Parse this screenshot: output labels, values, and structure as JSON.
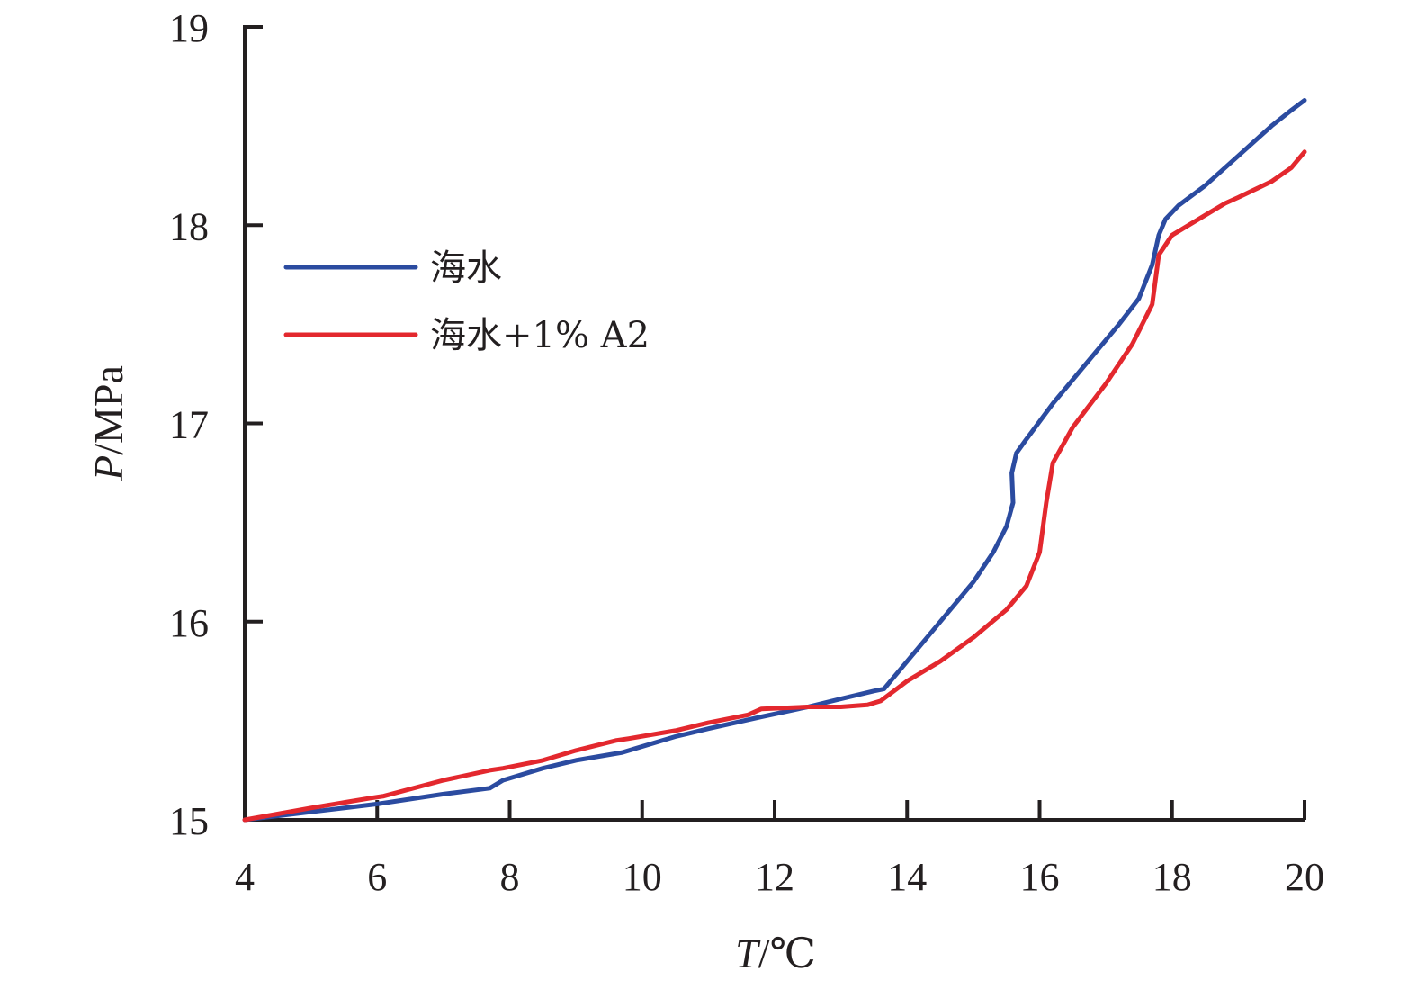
{
  "chart_data": {
    "type": "line",
    "xlabel_var": "T",
    "xlabel_unit": "/℃",
    "ylabel_var": "P",
    "ylabel_unit": "/MPa",
    "xlim": [
      4,
      20
    ],
    "ylim": [
      15,
      19
    ],
    "xticks": [
      4,
      6,
      8,
      10,
      12,
      14,
      16,
      18,
      20
    ],
    "yticks": [
      15,
      16,
      17,
      18,
      19
    ],
    "grid": false,
    "legend_position": "upper-left",
    "series": [
      {
        "name": "海水",
        "color": "#2b4ba0",
        "x": [
          4.0,
          5.0,
          6.0,
          7.0,
          7.7,
          7.9,
          8.5,
          9.0,
          9.7,
          9.9,
          10.5,
          11.0,
          11.8,
          12.5,
          13.0,
          13.5,
          13.65,
          14.0,
          14.5,
          15.0,
          15.3,
          15.5,
          15.6,
          15.58,
          15.65,
          15.8,
          16.2,
          16.7,
          17.2,
          17.5,
          17.7,
          17.8,
          17.9,
          18.1,
          18.5,
          19.0,
          19.5,
          19.8,
          20.0
        ],
        "y": [
          15.0,
          15.04,
          15.08,
          15.13,
          15.16,
          15.2,
          15.26,
          15.3,
          15.34,
          15.36,
          15.42,
          15.46,
          15.52,
          15.57,
          15.61,
          15.65,
          15.66,
          15.8,
          16.0,
          16.2,
          16.35,
          16.48,
          16.6,
          16.75,
          16.85,
          16.92,
          17.1,
          17.3,
          17.5,
          17.63,
          17.8,
          17.95,
          18.03,
          18.1,
          18.2,
          18.35,
          18.5,
          18.58,
          18.63
        ]
      },
      {
        "name": "海水+1% A2",
        "color": "#e3282e",
        "x": [
          4.0,
          5.0,
          5.9,
          6.1,
          7.0,
          7.7,
          7.9,
          8.5,
          9.0,
          9.6,
          9.8,
          10.5,
          11.0,
          11.6,
          11.8,
          12.5,
          13.0,
          13.4,
          13.6,
          14.0,
          14.5,
          15.0,
          15.5,
          15.8,
          16.0,
          16.1,
          16.2,
          16.5,
          17.0,
          17.4,
          17.7,
          17.8,
          18.0,
          18.5,
          18.8,
          19.0,
          19.5,
          19.8,
          20.0
        ],
        "y": [
          15.0,
          15.06,
          15.11,
          15.12,
          15.2,
          15.25,
          15.26,
          15.3,
          15.35,
          15.4,
          15.41,
          15.45,
          15.49,
          15.53,
          15.56,
          15.57,
          15.57,
          15.58,
          15.6,
          15.7,
          15.8,
          15.92,
          16.06,
          16.18,
          16.35,
          16.6,
          16.8,
          16.98,
          17.2,
          17.4,
          17.6,
          17.85,
          17.95,
          18.05,
          18.11,
          18.14,
          18.22,
          18.29,
          18.37
        ]
      }
    ]
  }
}
